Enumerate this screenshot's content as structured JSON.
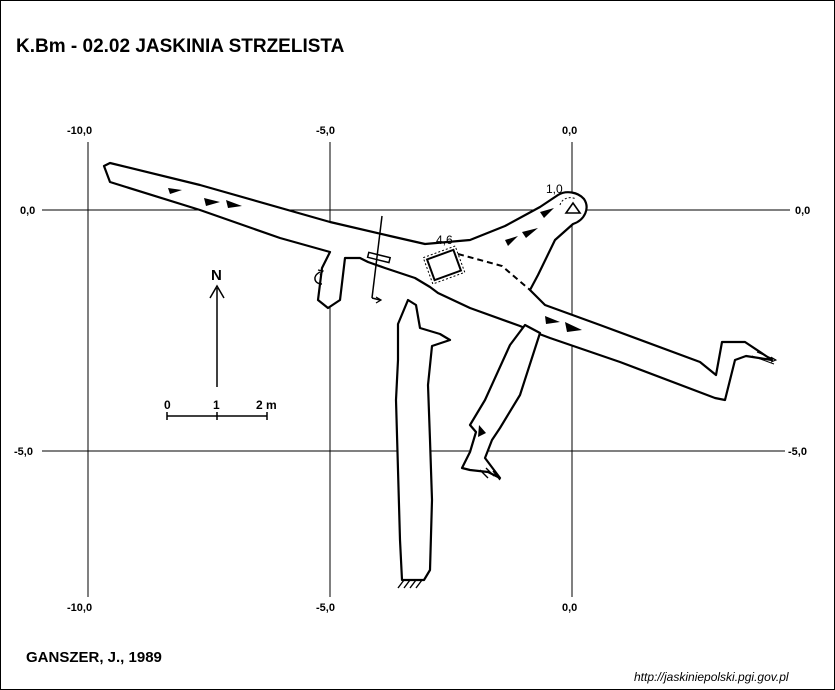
{
  "title": "K.Bm - 02.02  JASKINIA STRZELISTA",
  "author": "GANSZER, J., 1989",
  "source_url": "http://jaskiniepolski.pgi.gov.pl",
  "grid": {
    "x_top": [
      "-10,0",
      "-5,0",
      "0,0"
    ],
    "x_bottom": [
      "-10,0",
      "-5,0",
      "0,0"
    ],
    "y_left": [
      "0,0",
      "-5,0"
    ],
    "y_right": [
      "0,0",
      "-5,0"
    ]
  },
  "depth_labels": {
    "entrance": "1,0",
    "chamber": "4,6"
  },
  "north_label": "N",
  "scale_bar": {
    "ticks": [
      "0",
      "1",
      "2 m"
    ]
  },
  "colors": {
    "ink": "#000000",
    "background": "#ffffff"
  }
}
